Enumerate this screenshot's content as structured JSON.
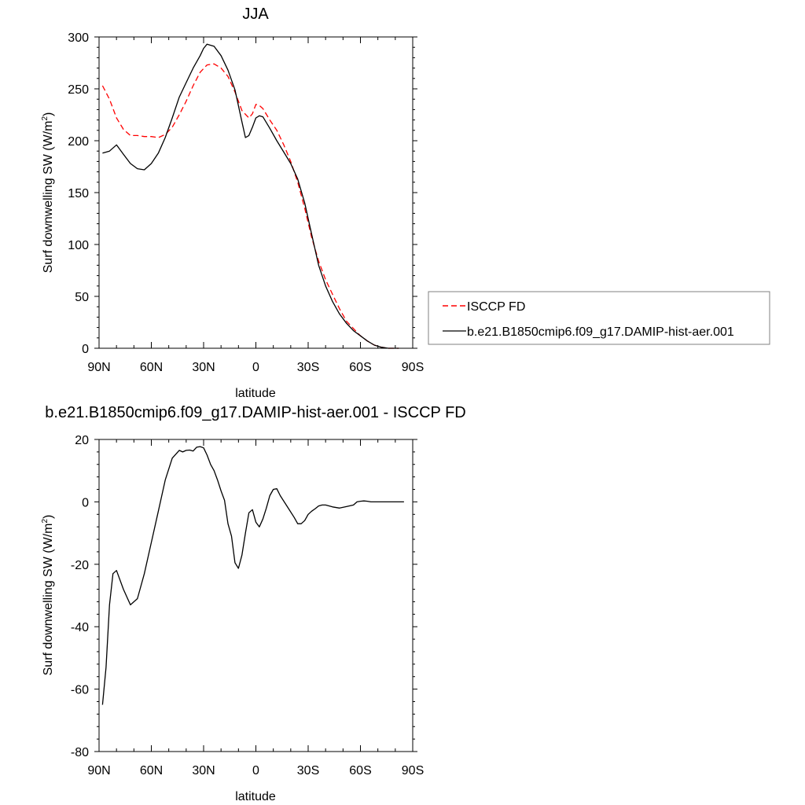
{
  "chart_data": [
    {
      "type": "line",
      "title": "JJA",
      "xlabel": "latitude",
      "ylabel": "Surf downwelling SW (W/m",
      "ylabel_sup": "2",
      "ylabel_close": ")",
      "xlim": [
        90,
        -90
      ],
      "ylim": [
        0,
        300
      ],
      "xtick_values": [
        90,
        60,
        30,
        0,
        -30,
        -60,
        -90
      ],
      "xtick_labels": [
        "90N",
        "60N",
        "30N",
        "0",
        "30S",
        "60S",
        "90S"
      ],
      "ytick_values": [
        0,
        50,
        100,
        150,
        200,
        250,
        300
      ],
      "ytick_labels": [
        "0",
        "50",
        "100",
        "150",
        "200",
        "250",
        "300"
      ],
      "legend_position": "right",
      "series": [
        {
          "name": "ISCCP FD",
          "color": "#ff0000",
          "dash": true,
          "x": [
            88,
            84,
            80,
            76,
            72,
            68,
            64,
            60,
            56,
            52,
            48,
            44,
            40,
            36,
            32,
            28,
            24,
            20,
            16,
            12,
            8,
            4,
            2,
            0,
            -2,
            -4,
            -8,
            -12,
            -16,
            -20,
            -24,
            -28,
            -32,
            -36,
            -40,
            -44,
            -48,
            -52,
            -56,
            -60,
            -64,
            -68,
            -72,
            -76,
            -80,
            -82
          ],
          "y": [
            253,
            240,
            222,
            211,
            205,
            205,
            204,
            204,
            203,
            206,
            213,
            225,
            238,
            253,
            266,
            273,
            274,
            270,
            262,
            247,
            229,
            222,
            226,
            235,
            234,
            231,
            220,
            210,
            196,
            180,
            160,
            135,
            107,
            84,
            66,
            52,
            38,
            26,
            19,
            12,
            7,
            3,
            1,
            0,
            0,
            0
          ]
        },
        {
          "name": "b.e21.B1850cmip6.f09_g17.DAMIP-hist-aer.001",
          "color": "#000000",
          "dash": false,
          "x": [
            88,
            84,
            80,
            76,
            72,
            68,
            64,
            60,
            56,
            52,
            48,
            44,
            40,
            36,
            32,
            30,
            28,
            24,
            20,
            16,
            12,
            8,
            6,
            4,
            2,
            0,
            -2,
            -4,
            -8,
            -12,
            -16,
            -20,
            -24,
            -28,
            -32,
            -36,
            -40,
            -44,
            -48,
            -52,
            -56,
            -60,
            -64,
            -68,
            -72,
            -76,
            -80,
            -82
          ],
          "y": [
            188,
            190,
            196,
            187,
            178,
            173,
            172,
            178,
            188,
            203,
            222,
            242,
            256,
            270,
            282,
            289,
            293,
            291,
            282,
            268,
            249,
            218,
            203,
            205,
            213,
            222,
            224,
            223,
            212,
            200,
            189,
            178,
            163,
            140,
            110,
            80,
            60,
            45,
            33,
            24,
            17,
            12,
            7,
            3,
            1,
            0,
            0,
            0
          ]
        }
      ]
    },
    {
      "type": "line",
      "title": "b.e21.B1850cmip6.f09_g17.DAMIP-hist-aer.001 - ISCCP FD",
      "xlabel": "latitude",
      "ylabel": "Surf downwelling SW (W/m",
      "ylabel_sup": "2",
      "ylabel_close": ")",
      "xlim": [
        90,
        -90
      ],
      "ylim": [
        -80,
        20
      ],
      "xtick_values": [
        90,
        60,
        30,
        0,
        -30,
        -60,
        -90
      ],
      "xtick_labels": [
        "90N",
        "60N",
        "30N",
        "0",
        "30S",
        "60S",
        "90S"
      ],
      "ytick_values": [
        -80,
        -60,
        -40,
        -20,
        0,
        20
      ],
      "ytick_labels": [
        "-80",
        "-60",
        "-40",
        "-20",
        "0",
        "20"
      ],
      "series": [
        {
          "color": "#000000",
          "x": [
            88,
            86,
            84,
            82,
            80,
            76,
            72,
            68,
            64,
            60,
            56,
            52,
            48,
            44,
            42,
            40,
            38,
            36,
            34,
            32,
            30,
            28,
            26,
            24,
            22,
            20,
            18,
            16,
            14,
            12,
            10,
            8,
            6,
            4,
            2,
            0,
            -2,
            -4,
            -6,
            -8,
            -10,
            -12,
            -14,
            -18,
            -22,
            -24,
            -26,
            -28,
            -30,
            -32,
            -34,
            -36,
            -38,
            -40,
            -44,
            -48,
            -52,
            -56,
            -58,
            -60,
            -62,
            -64,
            -66,
            -68,
            -70,
            -72,
            -74,
            -76,
            -80,
            -82,
            -85
          ],
          "y": [
            -65,
            -53,
            -33,
            -23,
            -22,
            -28,
            -33,
            -31,
            -23,
            -13,
            -3,
            7,
            14,
            16.5,
            16,
            16.5,
            16.6,
            16.3,
            17.5,
            17.7,
            17.3,
            15,
            12,
            10,
            7,
            3.5,
            0.5,
            -7,
            -11,
            -19.5,
            -21.3,
            -17,
            -10,
            -3.5,
            -2.5,
            -6.5,
            -8,
            -5.5,
            -2,
            2,
            4,
            4.2,
            2,
            -1.5,
            -5,
            -7,
            -7,
            -6,
            -4,
            -3,
            -2.2,
            -1.3,
            -1,
            -1,
            -1.6,
            -2,
            -1.5,
            -1,
            0,
            0.2,
            0.3,
            0.2,
            0,
            0,
            0,
            0,
            0,
            0,
            0,
            0,
            0
          ]
        }
      ]
    }
  ]
}
